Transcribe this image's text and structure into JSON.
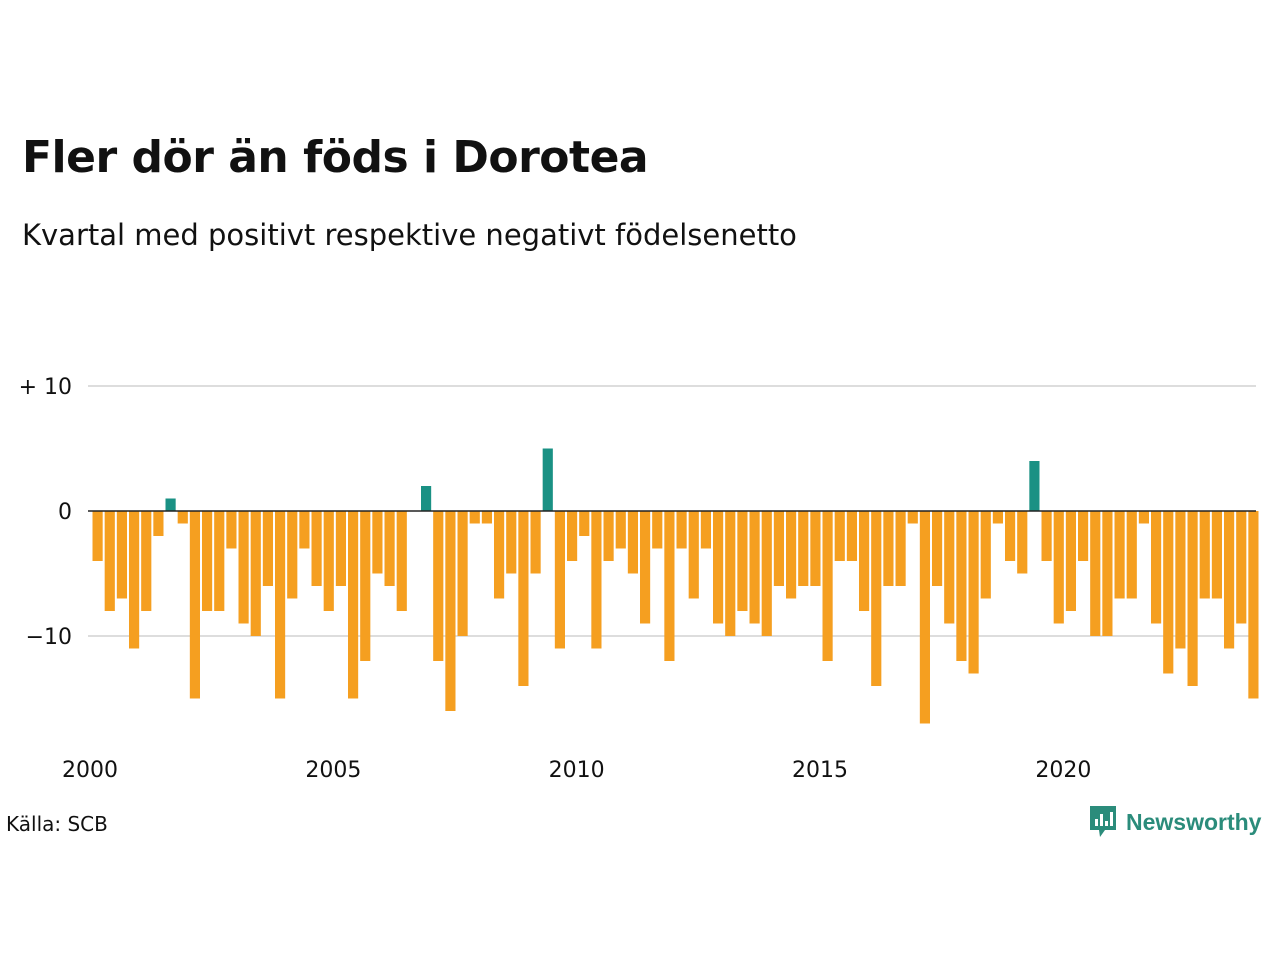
{
  "title": "Fler dör än föds i Dorotea",
  "subtitle": "Kvartal med positivt respektive negativt födelsenetto",
  "source": "Källa: SCB",
  "brand": "Newsworthy",
  "colors": {
    "positive": "#1a9184",
    "negative": "#f59f20",
    "grid": "#dddddd",
    "brand": "#2b8c7b"
  },
  "chart_data": {
    "type": "bar",
    "title": "Fler dör än föds i Dorotea",
    "subtitle": "Kvartal med positivt respektive negativt födelsenetto",
    "x_start_year": 2000,
    "periods_per_year": 4,
    "x_ticks": [
      "2000",
      "2005",
      "2010",
      "2015",
      "2020"
    ],
    "y_ticks": [
      {
        "value": 10,
        "label": "+ 10"
      },
      {
        "value": 0,
        "label": "0"
      },
      {
        "value": -10,
        "label": "−10"
      }
    ],
    "ylim": [
      -18,
      10
    ],
    "grid": true,
    "values": [
      -4,
      -8,
      -7,
      -11,
      -8,
      -2,
      1,
      -1,
      -15,
      -8,
      -8,
      -3,
      -9,
      -10,
      -6,
      -15,
      -7,
      -3,
      -6,
      -8,
      -6,
      -15,
      -12,
      -5,
      -6,
      -8,
      0,
      2,
      -12,
      -16,
      -10,
      -1,
      -1,
      -7,
      -5,
      -14,
      -5,
      5,
      -11,
      -4,
      -2,
      -11,
      -4,
      -3,
      -5,
      -9,
      -3,
      -12,
      -3,
      -7,
      -3,
      -9,
      -10,
      -8,
      -9,
      -10,
      -6,
      -7,
      -6,
      -6,
      -12,
      -4,
      -4,
      -8,
      -14,
      -6,
      -6,
      -1,
      -17,
      -6,
      -9,
      -12,
      -13,
      -7,
      -1,
      -4,
      -5,
      4,
      -4,
      -9,
      -8,
      -4,
      -10,
      -10,
      -7,
      -7,
      -1,
      -9,
      -13,
      -11,
      -14,
      -7,
      -7,
      -11,
      -9,
      -15
    ]
  }
}
